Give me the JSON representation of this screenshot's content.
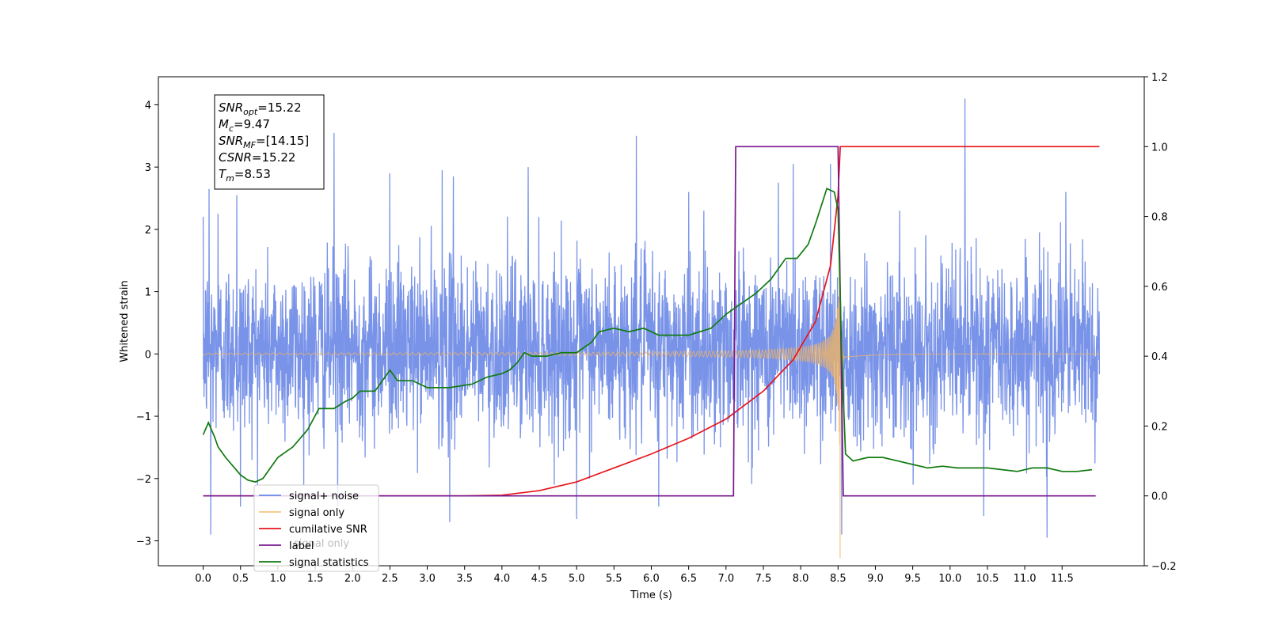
{
  "chart_data": {
    "type": "line",
    "title": "",
    "xlabel": "Time (s)",
    "ylabel": "Whitened strain",
    "y2label": "",
    "xlim": [
      -0.6,
      12.6
    ],
    "ylim": [
      -3.4,
      4.45
    ],
    "y2lim": [
      -0.2,
      1.2
    ],
    "x_ticks": [
      "0.0",
      "0.5",
      "1.0",
      "1.5",
      "2.0",
      "2.5",
      "3.0",
      "3.5",
      "4.0",
      "4.5",
      "5.0",
      "5.5",
      "6.0",
      "6.5",
      "7.0",
      "7.5",
      "8.0",
      "8.5",
      "9.0",
      "9.5",
      "10.0",
      "10.5",
      "11.0",
      "11.5"
    ],
    "y_ticks": [
      "−3",
      "−2",
      "−1",
      "0",
      "1",
      "2",
      "3",
      "4"
    ],
    "y2_ticks": [
      "−0.2",
      "0.0",
      "0.2",
      "0.4",
      "0.6",
      "0.8",
      "1.0",
      "1.2"
    ],
    "grid": false,
    "legend_position": "lower-left",
    "annotation": {
      "lines": [
        {
          "base": "SNR",
          "sub": "opt",
          "value": "=15.22"
        },
        {
          "base": "M",
          "sub": "c",
          "value": "=9.47"
        },
        {
          "base": "SNR",
          "sub": "MF",
          "value": "=[14.15]"
        },
        {
          "base": "CSNR",
          "sub": "",
          "value": "=15.22"
        },
        {
          "base": "T",
          "sub": "m",
          "value": "=8.53"
        }
      ]
    },
    "series": [
      {
        "name": "signal+ noise",
        "color": "#6a87e6",
        "axis": "left",
        "kind": "noise",
        "x_range": [
          0.0,
          12.0
        ],
        "typical_range": [
          -1.5,
          1.6
        ],
        "spikes": [
          [
            0.0,
            2.2
          ],
          [
            0.08,
            2.65
          ],
          [
            0.1,
            -2.9
          ],
          [
            0.2,
            2.25
          ],
          [
            0.45,
            2.55
          ],
          [
            0.5,
            -2.45
          ],
          [
            1.75,
            3.55
          ],
          [
            1.8,
            -2.45
          ],
          [
            2.5,
            2.9
          ],
          [
            3.2,
            2.95
          ],
          [
            3.3,
            -2.25
          ],
          [
            3.35,
            2.85
          ],
          [
            3.3,
            -2.7
          ],
          [
            4.35,
            3.0
          ],
          [
            5.0,
            -2.65
          ],
          [
            5.8,
            3.5
          ],
          [
            6.1,
            -2.45
          ],
          [
            6.5,
            2.6
          ],
          [
            7.7,
            2.75
          ],
          [
            7.9,
            3.05
          ],
          [
            8.4,
            3.05
          ],
          [
            8.55,
            -2.9
          ],
          [
            10.2,
            4.1
          ],
          [
            10.45,
            -2.6
          ],
          [
            11.3,
            -2.95
          ],
          [
            11.55,
            2.6
          ]
        ]
      },
      {
        "name": "signal only",
        "color": "#f5b65f",
        "axis": "left",
        "kind": "chirp",
        "x_range": [
          0.0,
          12.0
        ],
        "merger_time": 8.53,
        "peak_amplitude": 3.4
      },
      {
        "name": "cumilative SNR",
        "color": "#e8141a",
        "axis": "right",
        "points": [
          [
            0.0,
            0.0
          ],
          [
            3.5,
            0.0
          ],
          [
            4.0,
            0.002
          ],
          [
            4.5,
            0.015
          ],
          [
            5.0,
            0.04
          ],
          [
            5.5,
            0.08
          ],
          [
            6.0,
            0.12
          ],
          [
            6.5,
            0.165
          ],
          [
            7.0,
            0.22
          ],
          [
            7.5,
            0.3
          ],
          [
            7.9,
            0.39
          ],
          [
            8.2,
            0.5
          ],
          [
            8.4,
            0.66
          ],
          [
            8.5,
            0.86
          ],
          [
            8.53,
            1.0
          ],
          [
            12.0,
            1.0
          ]
        ]
      },
      {
        "name": "label",
        "color": "#7a1790",
        "axis": "right",
        "points": [
          [
            0.0,
            0.0
          ],
          [
            7.1,
            0.0
          ],
          [
            7.13,
            1.0
          ],
          [
            8.5,
            1.0
          ],
          [
            8.57,
            0.0
          ],
          [
            11.95,
            0.0
          ]
        ]
      },
      {
        "name": "signal statistics",
        "color": "#117a11",
        "axis": "right",
        "points": [
          [
            0.0,
            0.175
          ],
          [
            0.07,
            0.21
          ],
          [
            0.15,
            0.17
          ],
          [
            0.2,
            0.14
          ],
          [
            0.3,
            0.11
          ],
          [
            0.4,
            0.085
          ],
          [
            0.5,
            0.06
          ],
          [
            0.6,
            0.045
          ],
          [
            0.7,
            0.04
          ],
          [
            0.8,
            0.05
          ],
          [
            0.9,
            0.08
          ],
          [
            1.0,
            0.11
          ],
          [
            1.2,
            0.14
          ],
          [
            1.4,
            0.19
          ],
          [
            1.55,
            0.25
          ],
          [
            1.75,
            0.25
          ],
          [
            1.9,
            0.27
          ],
          [
            2.0,
            0.28
          ],
          [
            2.1,
            0.3
          ],
          [
            2.3,
            0.3
          ],
          [
            2.5,
            0.36
          ],
          [
            2.6,
            0.33
          ],
          [
            2.8,
            0.33
          ],
          [
            3.0,
            0.31
          ],
          [
            3.3,
            0.31
          ],
          [
            3.6,
            0.32
          ],
          [
            3.8,
            0.34
          ],
          [
            4.0,
            0.35
          ],
          [
            4.1,
            0.36
          ],
          [
            4.2,
            0.38
          ],
          [
            4.3,
            0.41
          ],
          [
            4.4,
            0.4
          ],
          [
            4.6,
            0.4
          ],
          [
            4.8,
            0.41
          ],
          [
            5.0,
            0.41
          ],
          [
            5.2,
            0.44
          ],
          [
            5.3,
            0.47
          ],
          [
            5.5,
            0.48
          ],
          [
            5.7,
            0.47
          ],
          [
            5.9,
            0.48
          ],
          [
            6.1,
            0.46
          ],
          [
            6.3,
            0.46
          ],
          [
            6.5,
            0.46
          ],
          [
            6.8,
            0.48
          ],
          [
            7.0,
            0.52
          ],
          [
            7.2,
            0.55
          ],
          [
            7.4,
            0.58
          ],
          [
            7.6,
            0.62
          ],
          [
            7.8,
            0.68
          ],
          [
            7.95,
            0.68
          ],
          [
            8.1,
            0.72
          ],
          [
            8.2,
            0.78
          ],
          [
            8.35,
            0.88
          ],
          [
            8.45,
            0.87
          ],
          [
            8.5,
            0.82
          ],
          [
            8.55,
            0.4
          ],
          [
            8.6,
            0.12
          ],
          [
            8.7,
            0.1
          ],
          [
            8.9,
            0.11
          ],
          [
            9.1,
            0.11
          ],
          [
            9.3,
            0.1
          ],
          [
            9.5,
            0.09
          ],
          [
            9.7,
            0.08
          ],
          [
            9.9,
            0.085
          ],
          [
            10.1,
            0.08
          ],
          [
            10.3,
            0.08
          ],
          [
            10.5,
            0.08
          ],
          [
            10.7,
            0.075
          ],
          [
            10.9,
            0.07
          ],
          [
            11.1,
            0.08
          ],
          [
            11.3,
            0.08
          ],
          [
            11.5,
            0.07
          ],
          [
            11.7,
            0.07
          ],
          [
            11.9,
            0.075
          ]
        ]
      }
    ],
    "legend_overlapped_text": "signal only"
  }
}
